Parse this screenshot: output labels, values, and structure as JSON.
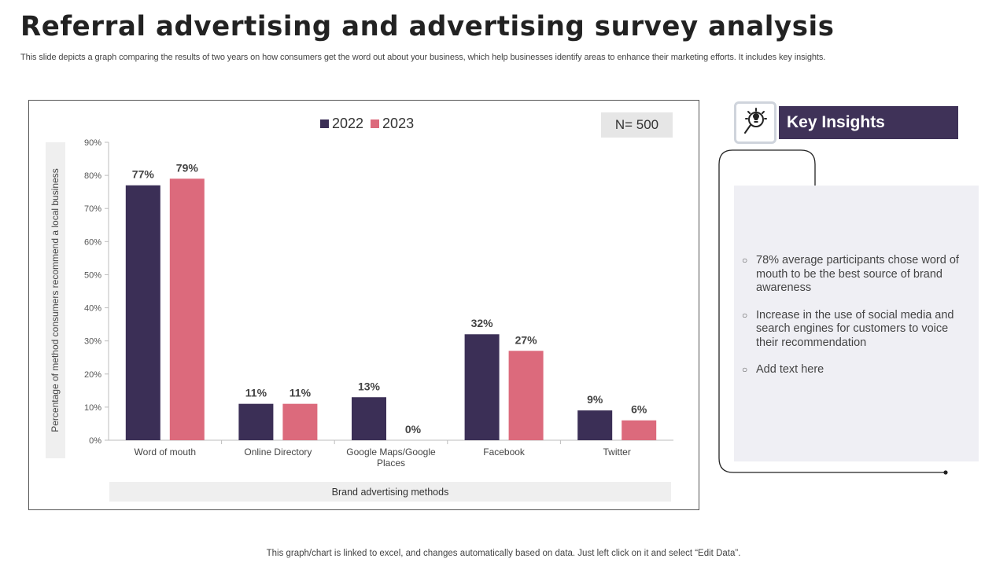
{
  "title": "Referral advertising and advertising survey analysis",
  "subtitle": "This slide depicts a graph comparing the results of two years on how consumers get the word out about your  business, which help businesses identify areas to enhance their marketing efforts. It includes key insights.",
  "sample_size": "N= 500",
  "insights": {
    "header": "Key Insights",
    "icon": "magnifier-lightbulb-icon",
    "items": [
      "78% average participants chose word of mouth to be the best source of brand awareness",
      "Increase in the use of social media and search engines for customers to voice their recommendation",
      "Add text here"
    ]
  },
  "footer": "This graph/chart is linked to excel,  and changes automatically based on data. Just left click on it and select “Edit Data”.",
  "colors": {
    "series2022": "#3b2f56",
    "series2023": "#dc6a7c",
    "insightHeader": "#3f3258",
    "panel": "#efeff4"
  },
  "chart_data": {
    "type": "bar",
    "title": "",
    "xlabel": "Brand advertising  methods",
    "ylabel": "Percentage of method consumers recommend  a local business",
    "categories": [
      "Word of mouth",
      "Online Directory",
      "Google Maps/Google Places",
      "Facebook",
      "Twitter"
    ],
    "category_lines": [
      [
        "Word of mouth"
      ],
      [
        "Online Directory"
      ],
      [
        "Google Maps/Google",
        "Places"
      ],
      [
        "Facebook"
      ],
      [
        "Twitter"
      ]
    ],
    "series": [
      {
        "name": "2022",
        "values": [
          77,
          11,
          13,
          32,
          9
        ],
        "labels": [
          "77%",
          "11%",
          "13%",
          "32%",
          "9%"
        ]
      },
      {
        "name": "2023",
        "values": [
          79,
          11,
          0,
          27,
          6
        ],
        "labels": [
          "79%",
          "11%",
          "0%",
          "27%",
          "6%"
        ]
      }
    ],
    "ylim": [
      0,
      90
    ],
    "yticks": [
      0,
      10,
      20,
      30,
      40,
      50,
      60,
      70,
      80,
      90
    ],
    "ytick_labels": [
      "0%",
      "10%",
      "20%",
      "30%",
      "40%",
      "50%",
      "60%",
      "70%",
      "80%",
      "90%"
    ],
    "legend": "top-center",
    "grid": false
  }
}
